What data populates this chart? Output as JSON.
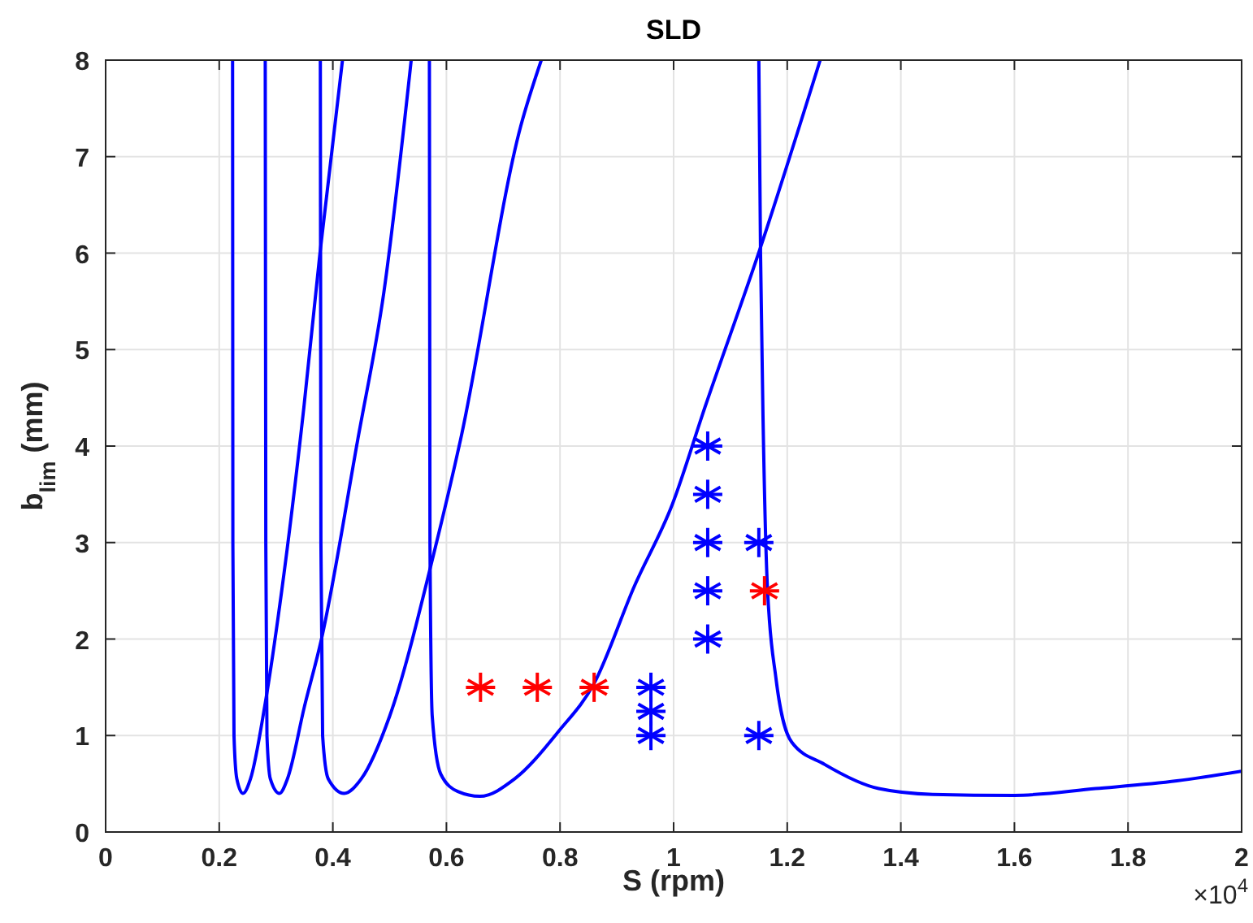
{
  "chart_data": {
    "type": "line",
    "title": "SLD",
    "xlabel": "S (rpm)",
    "ylabel": "b$_{lim}$ (mm)",
    "annotations": [
      "×10$^{4}$"
    ],
    "xlim": [
      0,
      2
    ],
    "xticks": [
      0,
      0.2,
      0.4,
      0.6,
      0.8,
      1,
      1.2,
      1.4,
      1.6,
      1.8,
      2
    ],
    "ylim": [
      0,
      8
    ],
    "yticks": [
      0,
      1,
      2,
      3,
      4,
      5,
      6,
      7,
      8
    ],
    "grid": true,
    "line_style": "solid",
    "marker": "none",
    "series": [
      {
        "color": "#0000ff",
        "x": [
          0.2235,
          0.224,
          0.226,
          0.231,
          0.2416,
          0.255,
          0.28,
          0.31,
          0.349,
          0.377,
          0.417
        ],
        "values": [
          8,
          3,
          1,
          0.55,
          0.4,
          0.55,
          1.3,
          2.5,
          4.4,
          5.98,
          8
        ]
      },
      {
        "color": "#0000ff",
        "x": [
          0.281,
          0.282,
          0.284,
          0.29,
          0.306,
          0.32,
          0.35,
          0.38,
          0.444,
          0.49,
          0.538
        ],
        "values": [
          8,
          3,
          1,
          0.55,
          0.4,
          0.55,
          1.3,
          2,
          4.07,
          5.6,
          8
        ]
      },
      {
        "color": "#0000ff",
        "x": [
          0.378,
          0.379,
          0.382,
          0.392,
          0.42,
          0.45,
          0.5,
          0.578,
          0.625,
          0.731,
          0.767
        ],
        "values": [
          8,
          3,
          1,
          0.55,
          0.4,
          0.55,
          1.2,
          2.89,
          4.07,
          7.32,
          8
        ]
      },
      {
        "color": "#0000ff",
        "x": [
          0.57,
          0.571,
          0.575,
          0.59,
          0.62,
          0.659,
          0.72,
          0.797,
          0.86,
          0.931,
          0.998,
          1.055,
          1.153,
          1.258
        ],
        "values": [
          8,
          3,
          1.2,
          0.6,
          0.42,
          0.37,
          0.55,
          1.04,
          1.54,
          2.55,
          3.4,
          4.4,
          6.06,
          8
        ]
      },
      {
        "color": "#0000ff",
        "x": [
          1.15,
          1.153,
          1.158,
          1.165,
          1.18,
          1.208,
          1.266,
          1.361,
          1.456,
          1.6,
          1.743,
          1.886,
          2
        ],
        "values": [
          8,
          6,
          4.1,
          2.55,
          1.6,
          0.93,
          0.7,
          0.45,
          0.39,
          0.38,
          0.45,
          0.53,
          0.63
        ]
      },
      {
        "type": "scatter",
        "marker": "cross",
        "color": "#ff0000",
        "x": [
          0.66,
          0.76,
          0.86,
          1.16
        ],
        "values": [
          1.5,
          1.5,
          1.5,
          2.5
        ]
      },
      {
        "type": "scatter",
        "marker": "cross",
        "color": "#0000ff",
        "x": [
          0.96,
          0.96,
          0.96,
          1.06,
          1.06,
          1.06,
          1.06,
          1.06,
          1.15,
          1.15
        ],
        "values": [
          1.5,
          1.25,
          1,
          4,
          3.5,
          3,
          2.5,
          2,
          3,
          1
        ]
      }
    ]
  }
}
